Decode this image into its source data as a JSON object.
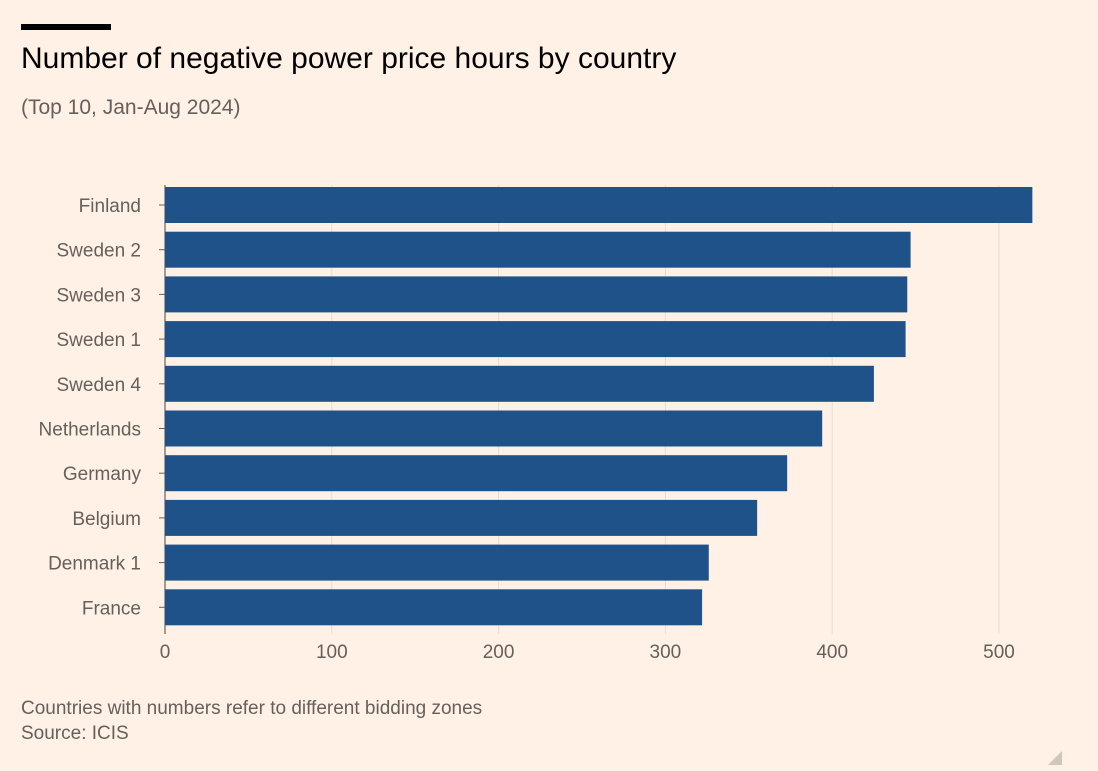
{
  "header": {
    "title": "Number of negative power price hours by country",
    "subtitle": "(Top 10, Jan-Aug 2024)"
  },
  "footer": {
    "note": "Countries with numbers refer to different bidding zones",
    "source": "Source: ICIS"
  },
  "colors": {
    "bar": "#1f5289",
    "grid": "#e8ddd3",
    "axis": "#66605c"
  },
  "chart_data": {
    "type": "bar",
    "orientation": "horizontal",
    "title": "Number of negative power price hours by country",
    "subtitle": "(Top 10, Jan-Aug 2024)",
    "xlabel": "",
    "ylabel": "",
    "categories": [
      "Finland",
      "Sweden 2",
      "Sweden 3",
      "Sweden 1",
      "Sweden 4",
      "Netherlands",
      "Germany",
      "Belgium",
      "Denmark 1",
      "France"
    ],
    "values": [
      520,
      447,
      445,
      444,
      425,
      394,
      373,
      355,
      326,
      322
    ],
    "xlim": [
      0,
      520
    ],
    "xticks": [
      0,
      100,
      200,
      300,
      400,
      500
    ],
    "grid": true
  }
}
